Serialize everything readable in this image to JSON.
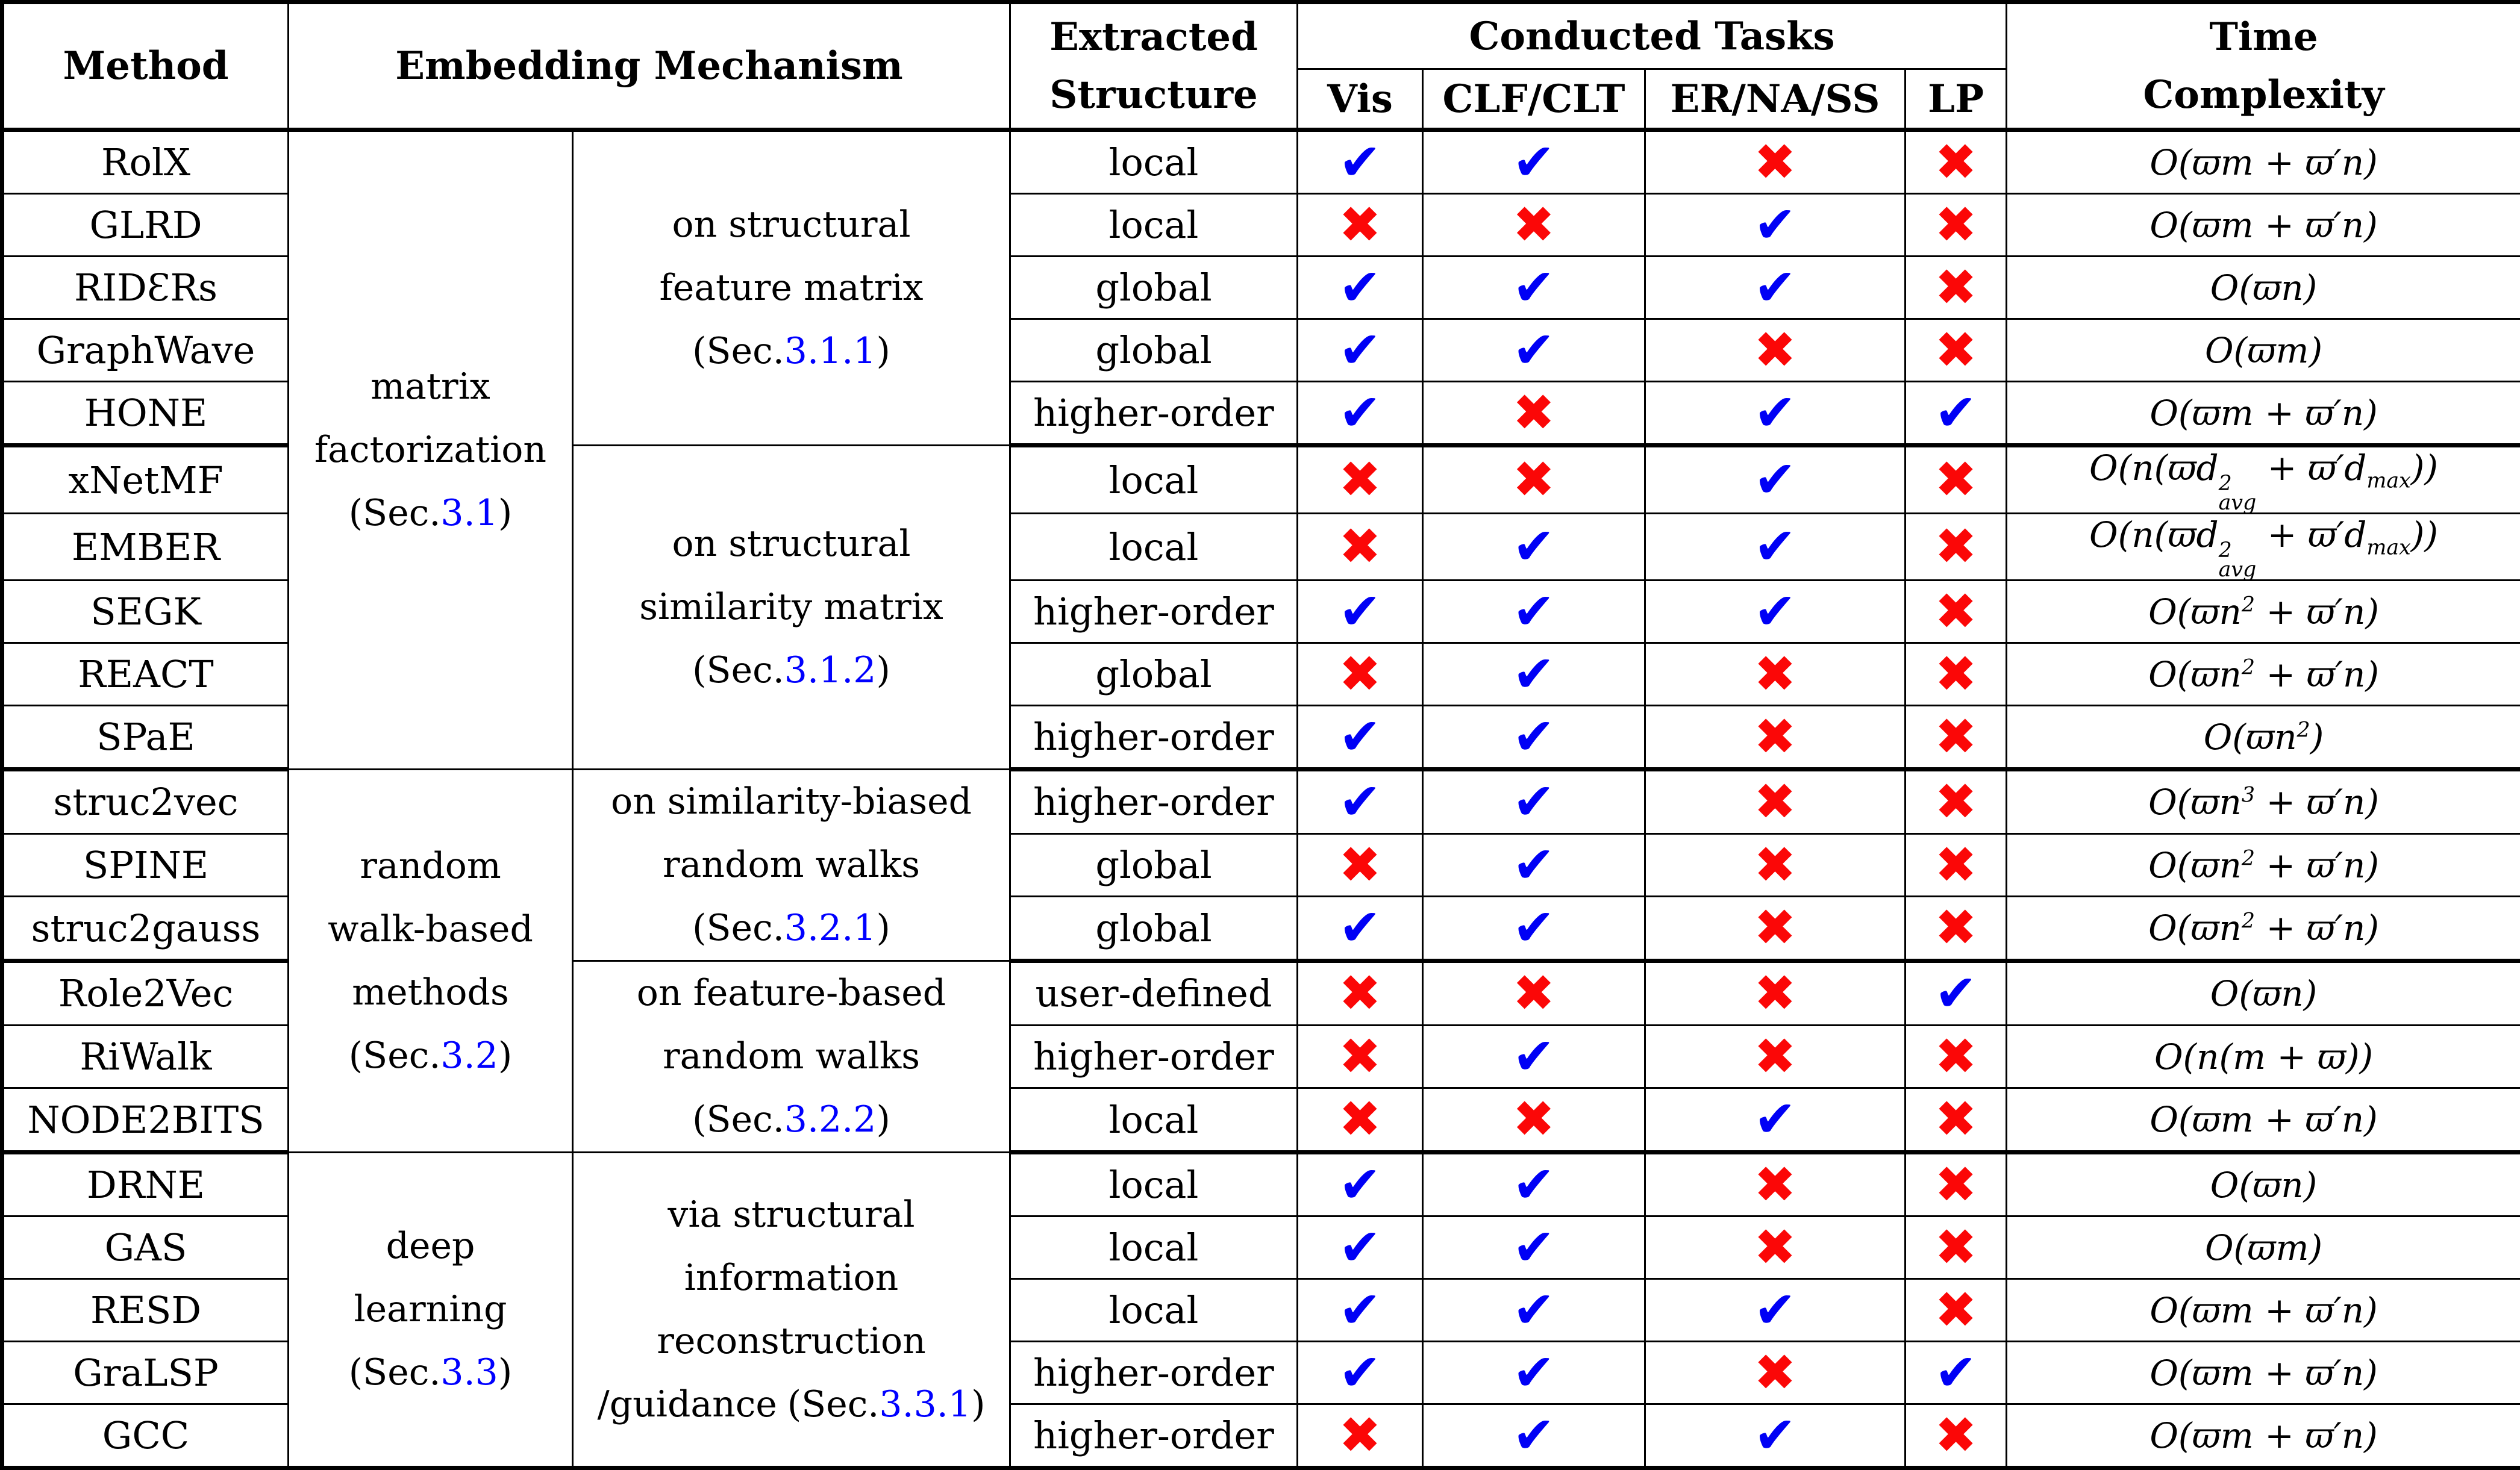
{
  "header": {
    "method": "Method",
    "embedding_mechanism": "Embedding Mechanism",
    "extracted_structure_lines": [
      "Extracted",
      "Structure"
    ],
    "conducted_tasks": "Conducted Tasks",
    "task_columns": [
      "Vis",
      "CLF/CLT",
      "ER/NA/SS",
      "LP"
    ],
    "time_complexity_lines": [
      "Time",
      "Complexity"
    ]
  },
  "labels": {
    "sec_open": "(Sec.",
    "close": ")"
  },
  "colors": {
    "check": "#0000f5",
    "cross": "#fb0707",
    "link": "#0000ff"
  },
  "symbols": {
    "check": "✔",
    "cross": "✖"
  },
  "groups": [
    {
      "lines": [
        "matrix",
        "factorization"
      ],
      "sec": "3.1"
    },
    {
      "lines": [
        "random",
        "walk-based",
        "methods"
      ],
      "sec": "3.2"
    },
    {
      "lines": [
        "deep",
        "learning"
      ],
      "sec": "3.3"
    }
  ],
  "subgroups": [
    {
      "lines": [
        "on structural",
        "feature matrix"
      ],
      "sec": "3.1.1"
    },
    {
      "lines": [
        "on structural",
        "similarity matrix"
      ],
      "sec": "3.1.2"
    },
    {
      "lines": [
        "on similarity-biased",
        "random walks"
      ],
      "sec": "3.2.1"
    },
    {
      "lines": [
        "on feature-based",
        "random walks"
      ],
      "sec": "3.2.2"
    },
    {
      "lines": [
        "via structural",
        "information",
        "reconstruction"
      ],
      "tail": "/guidance",
      "sec": "3.3.1"
    }
  ],
  "rows": [
    {
      "method": "RolX",
      "structure": "local",
      "tasks": [
        "check",
        "check",
        "cross",
        "cross"
      ],
      "complexity": "O(ϖm + ϖ′n)"
    },
    {
      "method": "GLRD",
      "structure": "local",
      "tasks": [
        "cross",
        "cross",
        "check",
        "cross"
      ],
      "complexity": "O(ϖm + ϖ′n)"
    },
    {
      "method": "RIDƐRs",
      "structure": "global",
      "tasks": [
        "check",
        "check",
        "check",
        "cross"
      ],
      "complexity": "O(ϖn)"
    },
    {
      "method": "GraphWave",
      "structure": "global",
      "tasks": [
        "check",
        "check",
        "cross",
        "cross"
      ],
      "complexity": "O(ϖm)"
    },
    {
      "method": "HONE",
      "structure": "higher-order",
      "tasks": [
        "check",
        "cross",
        "check",
        "check"
      ],
      "complexity": "O(ϖm + ϖ′n)"
    },
    {
      "method": "xNetMF",
      "structure": "local",
      "tasks": [
        "cross",
        "cross",
        "check",
        "cross"
      ],
      "complexity": "O(n(ϖd^{2}_{avg} + ϖ′d_{max}))"
    },
    {
      "method": "EMBER",
      "structure": "local",
      "tasks": [
        "cross",
        "check",
        "check",
        "cross"
      ],
      "complexity": "O(n(ϖd^{2}_{avg} + ϖ′d_{max}))"
    },
    {
      "method": "SEGK",
      "structure": "higher-order",
      "tasks": [
        "check",
        "check",
        "check",
        "cross"
      ],
      "complexity": "O(ϖn^{2} + ϖ′n)"
    },
    {
      "method": "REACT",
      "structure": "global",
      "tasks": [
        "cross",
        "check",
        "cross",
        "cross"
      ],
      "complexity": "O(ϖn^{2} + ϖ′n)"
    },
    {
      "method": "SPaE",
      "structure": "higher-order",
      "tasks": [
        "check",
        "check",
        "cross",
        "cross"
      ],
      "complexity": "O(ϖn^{2})"
    },
    {
      "method": "struc2vec",
      "structure": "higher-order",
      "tasks": [
        "check",
        "check",
        "cross",
        "cross"
      ],
      "complexity": "O(ϖn^{3} + ϖ′n)"
    },
    {
      "method": "SPINE",
      "structure": "global",
      "tasks": [
        "cross",
        "check",
        "cross",
        "cross"
      ],
      "complexity": "O(ϖn^{2} + ϖ′n)"
    },
    {
      "method": "struc2gauss",
      "structure": "global",
      "tasks": [
        "check",
        "check",
        "cross",
        "cross"
      ],
      "complexity": "O(ϖn^{2} + ϖ′n)"
    },
    {
      "method": "Role2Vec",
      "structure": "user-defined",
      "tasks": [
        "cross",
        "cross",
        "cross",
        "check"
      ],
      "complexity": "O(ϖn)"
    },
    {
      "method": "RiWalk",
      "structure": "higher-order",
      "tasks": [
        "cross",
        "check",
        "cross",
        "cross"
      ],
      "complexity": "O(n(m + ϖ))"
    },
    {
      "method": "NODE2BITS",
      "structure": "local",
      "tasks": [
        "cross",
        "cross",
        "check",
        "cross"
      ],
      "complexity": "O(ϖm + ϖ′n)"
    },
    {
      "method": "DRNE",
      "structure": "local",
      "tasks": [
        "check",
        "check",
        "cross",
        "cross"
      ],
      "complexity": "O(ϖn)"
    },
    {
      "method": "GAS",
      "structure": "local",
      "tasks": [
        "check",
        "check",
        "cross",
        "cross"
      ],
      "complexity": "O(ϖm)"
    },
    {
      "method": "RESD",
      "structure": "local",
      "tasks": [
        "check",
        "check",
        "check",
        "cross"
      ],
      "complexity": "O(ϖm + ϖ′n)"
    },
    {
      "method": "GraLSP",
      "structure": "higher-order",
      "tasks": [
        "check",
        "check",
        "cross",
        "check"
      ],
      "complexity": "O(ϖm + ϖ′n)"
    },
    {
      "method": "GCC",
      "structure": "higher-order",
      "tasks": [
        "cross",
        "check",
        "check",
        "cross"
      ],
      "complexity": "O(ϖm + ϖ′n)"
    }
  ]
}
